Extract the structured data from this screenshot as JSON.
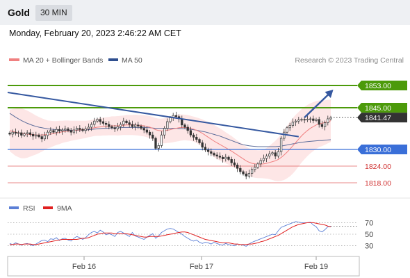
{
  "header": {
    "title": "Gold",
    "timeframe": "30 MIN"
  },
  "timestamp": "Monday, February 20, 2023 2:46:22 AM CET",
  "legend": {
    "ma20_bb": "MA 20 + Bollinger Bands",
    "ma50": "MA 50"
  },
  "copyright": "Research © 2023 Trading Central",
  "colors": {
    "ma20": "#f08080",
    "ma50": "#2f4f8f",
    "resistance": "#4c9a0a",
    "support": "#3a6fd8",
    "minor": "#e06060",
    "trend": "#3558a0",
    "candle": "#333333",
    "band": "#fde2e2",
    "rsi": "#5b7fd6",
    "ma9": "#e02020"
  },
  "chart_data": [
    {
      "type": "candlestick",
      "title": "",
      "x_ticks": [
        "Feb 16",
        "Feb 17",
        "Feb 19"
      ],
      "ylim": [
        1813,
        1860
      ],
      "levels": [
        {
          "value": 1853.0,
          "label": "1853.00",
          "kind": "resistance"
        },
        {
          "value": 1845.0,
          "label": "1845.00",
          "kind": "resistance"
        },
        {
          "value": 1841.47,
          "label": "1841.47",
          "kind": "last"
        },
        {
          "value": 1830.0,
          "label": "1830.00",
          "kind": "support"
        },
        {
          "value": 1824.0,
          "label": "1824.00",
          "kind": "minor"
        },
        {
          "value": 1818.0,
          "label": "1818.00",
          "kind": "minor"
        }
      ],
      "close": [
        1835.5,
        1836.2,
        1835.8,
        1836.0,
        1835.1,
        1835.6,
        1836.0,
        1835.4,
        1834.8,
        1835.2,
        1834.6,
        1833.8,
        1835.0,
        1836.2,
        1836.8,
        1836.2,
        1837.2,
        1836.6,
        1837.0,
        1837.4,
        1836.8,
        1836.2,
        1837.0,
        1837.6,
        1837.2,
        1836.8,
        1837.4,
        1838.0,
        1839.0,
        1840.2,
        1840.8,
        1840.0,
        1839.4,
        1839.0,
        1838.2,
        1837.8,
        1837.4,
        1838.2,
        1839.0,
        1840.2,
        1839.6,
        1839.0,
        1838.2,
        1838.8,
        1838.4,
        1837.6,
        1837.0,
        1836.2,
        1835.2,
        1834.0,
        1830.4,
        1831.4,
        1835.2,
        1837.6,
        1840.0,
        1841.4,
        1842.2,
        1841.8,
        1841.0,
        1838.8,
        1838.0,
        1836.8,
        1835.2,
        1834.4,
        1833.6,
        1832.4,
        1830.8,
        1829.8,
        1829.2,
        1828.6,
        1828.0,
        1827.6,
        1827.2,
        1826.6,
        1827.2,
        1826.4,
        1825.2,
        1824.4,
        1823.2,
        1822.0,
        1821.2,
        1820.4,
        1821.4,
        1822.8,
        1823.6,
        1824.8,
        1826.0,
        1826.8,
        1827.6,
        1828.4,
        1828.8,
        1827.6,
        1829.2,
        1834.0,
        1836.2,
        1837.8,
        1838.6,
        1839.8,
        1840.2,
        1840.6,
        1840.8,
        1840.6,
        1840.9,
        1841.0,
        1840.4,
        1840.8,
        1839.0,
        1838.2,
        1839.6,
        1841.0,
        1841.47
      ],
      "ma20": [
        1836.8,
        1836.5,
        1836.2,
        1836.0,
        1835.8,
        1835.6,
        1835.5,
        1835.4,
        1835.3,
        1835.2,
        1835.2,
        1835.2,
        1835.3,
        1835.4,
        1835.5,
        1835.7,
        1835.9,
        1836.1,
        1836.3,
        1836.5,
        1836.6,
        1836.7,
        1836.8,
        1836.9,
        1837.0,
        1837.1,
        1837.2,
        1837.4,
        1837.6,
        1837.8,
        1838.0,
        1838.1,
        1838.2,
        1838.3,
        1838.4,
        1838.5,
        1838.5,
        1838.5,
        1838.6,
        1838.7,
        1838.8,
        1838.8,
        1838.8,
        1838.8,
        1838.7,
        1838.6,
        1838.5,
        1838.3,
        1838.0,
        1837.6,
        1837.1,
        1836.8,
        1836.7,
        1836.7,
        1836.9,
        1837.1,
        1837.4,
        1837.6,
        1837.8,
        1837.9,
        1837.9,
        1837.8,
        1837.6,
        1837.3,
        1836.9,
        1836.4,
        1835.8,
        1835.1,
        1834.4,
        1833.7,
        1833.0,
        1832.4,
        1831.8,
        1831.2,
        1830.6,
        1830.0,
        1829.4,
        1828.7,
        1828.0,
        1827.3,
        1826.6,
        1825.9,
        1825.4,
        1825.0,
        1824.8,
        1824.7,
        1824.7,
        1824.8,
        1825.0,
        1825.3,
        1825.6,
        1825.9,
        1826.4,
        1827.1,
        1828.0,
        1829.0,
        1830.1,
        1831.3,
        1832.5,
        1833.7,
        1834.9,
        1835.9,
        1836.8,
        1837.6,
        1838.2,
        1838.8,
        1839.2,
        1839.4,
        1839.7,
        1840.0,
        1840.3
      ],
      "ma50": [
        1843.0,
        1842.3,
        1841.6,
        1841.0,
        1840.4,
        1839.9,
        1839.4,
        1839.0,
        1838.6,
        1838.3,
        1838.0,
        1837.8,
        1837.6,
        1837.4,
        1837.3,
        1837.2,
        1837.1,
        1837.0,
        1837.0,
        1836.9,
        1836.9,
        1836.9,
        1836.9,
        1836.9,
        1836.9,
        1837.0,
        1837.0,
        1837.1,
        1837.2,
        1837.3,
        1837.4,
        1837.5,
        1837.6,
        1837.6,
        1837.7,
        1837.7,
        1837.8,
        1837.8,
        1837.8,
        1837.9,
        1837.9,
        1837.9,
        1837.9,
        1837.9,
        1837.9,
        1837.9,
        1837.9,
        1837.8,
        1837.8,
        1837.7,
        1837.6,
        1837.6,
        1837.6,
        1837.6,
        1837.6,
        1837.6,
        1837.6,
        1837.6,
        1837.5,
        1837.5,
        1837.4,
        1837.3,
        1837.2,
        1837.1,
        1836.9,
        1836.7,
        1836.5,
        1836.3,
        1836.0,
        1835.7,
        1835.4,
        1835.1,
        1834.8,
        1834.4,
        1834.0,
        1833.6,
        1833.2,
        1832.8,
        1832.4,
        1832.0,
        1831.7,
        1831.5,
        1831.3,
        1831.2,
        1831.1,
        1831.0,
        1831.0,
        1831.0,
        1831.0,
        1831.0,
        1831.0,
        1831.0,
        1831.1,
        1831.2,
        1831.4,
        1831.6,
        1831.8,
        1832.0,
        1832.2,
        1832.4,
        1832.6,
        1832.7,
        1832.8,
        1832.9,
        1833.0,
        1833.1,
        1833.2,
        1833.2,
        1833.3,
        1833.4,
        1833.5
      ],
      "band_width": [
        7.5,
        8.0,
        8.5,
        8.8,
        9.0,
        8.8,
        8.5,
        8.0,
        7.5,
        7.0,
        6.5,
        6.0,
        5.5,
        5.0,
        4.8,
        4.5,
        4.3,
        4.2,
        4.0,
        3.9,
        3.8,
        3.6,
        3.5,
        3.4,
        3.3,
        3.2,
        3.1,
        3.0,
        3.0,
        3.0,
        3.1,
        3.2,
        3.2,
        3.3,
        3.3,
        3.4,
        3.4,
        3.5,
        3.5,
        3.5,
        3.6,
        3.6,
        3.6,
        3.7,
        3.7,
        3.8,
        3.8,
        3.9,
        4.0,
        4.1,
        4.2,
        4.3,
        4.4,
        4.5,
        4.6,
        4.7,
        4.8,
        4.8,
        4.8,
        4.7,
        4.6,
        4.6,
        4.5,
        4.5,
        4.6,
        4.8,
        5.0,
        5.2,
        5.4,
        5.6,
        5.8,
        5.8,
        5.8,
        5.7,
        5.6,
        5.5,
        5.4,
        5.3,
        5.2,
        5.2,
        5.2,
        5.1,
        5.0,
        5.0,
        5.0,
        5.0,
        5.0,
        5.2,
        5.5,
        6.0,
        6.6,
        7.2,
        7.8,
        8.4,
        9.0,
        9.4,
        9.8,
        10.0,
        10.0,
        9.8,
        9.6,
        9.4,
        9.2,
        9.0,
        8.8,
        8.6,
        8.4,
        8.2,
        8.0,
        7.8,
        7.6
      ],
      "trendline": [
        [
          0,
          1850.5
        ],
        [
          99,
          1834.6
        ]
      ],
      "arrow": [
        [
          101,
          1841.5
        ],
        [
          108,
          1851.5
        ]
      ]
    },
    {
      "type": "line",
      "title": "",
      "legend": [
        "RSI",
        "9MA"
      ],
      "ylim": [
        15,
        85
      ],
      "y_ticks": [
        30,
        50,
        70
      ],
      "series": [
        {
          "name": "RSI",
          "values": [
            34,
            32,
            35,
            33,
            31,
            33,
            34,
            32,
            30,
            33,
            36,
            39,
            40,
            37,
            42,
            41,
            44,
            39,
            42,
            43,
            40,
            38,
            43,
            46,
            44,
            41,
            44,
            49,
            53,
            55,
            52,
            57,
            54,
            49,
            51,
            49,
            46,
            53,
            55,
            52,
            49,
            46,
            53,
            47,
            45,
            43,
            41,
            45,
            48,
            51,
            43,
            47,
            53,
            56,
            59,
            60,
            59,
            56,
            53,
            50,
            46,
            43,
            40,
            38,
            40,
            36,
            34,
            36,
            35,
            33,
            36,
            34,
            32,
            31,
            34,
            32,
            31,
            30,
            33,
            32,
            31,
            29,
            33,
            36,
            38,
            40,
            42,
            44,
            46,
            48,
            50,
            49,
            56,
            62,
            64,
            66,
            68,
            70,
            72,
            71,
            70,
            70,
            70,
            71,
            66,
            63,
            56,
            54,
            58,
            63,
            64
          ]
        },
        {
          "name": "9MA",
          "values": [
            32,
            32,
            33,
            33,
            32,
            33,
            33,
            33,
            32,
            32,
            33,
            34,
            35,
            36,
            37,
            38,
            39,
            40,
            41,
            41,
            41,
            41,
            41,
            41,
            42,
            43,
            43,
            44,
            46,
            48,
            50,
            51,
            52,
            52,
            52,
            52,
            51,
            51,
            51,
            51,
            51,
            50,
            49,
            48,
            47,
            46,
            45,
            45,
            46,
            46,
            46,
            46,
            47,
            48,
            49,
            50,
            51,
            52,
            53,
            54,
            54,
            53,
            51,
            49,
            47,
            45,
            43,
            41,
            40,
            39,
            38,
            37,
            36,
            35,
            35,
            35,
            34,
            33,
            33,
            32,
            32,
            32,
            33,
            33,
            34,
            35,
            37,
            38,
            40,
            42,
            44,
            46,
            48,
            51,
            54,
            57,
            60,
            63,
            65,
            67,
            68,
            69,
            70,
            70,
            70,
            69,
            68,
            67,
            66,
            64,
            63
          ]
        }
      ]
    }
  ]
}
